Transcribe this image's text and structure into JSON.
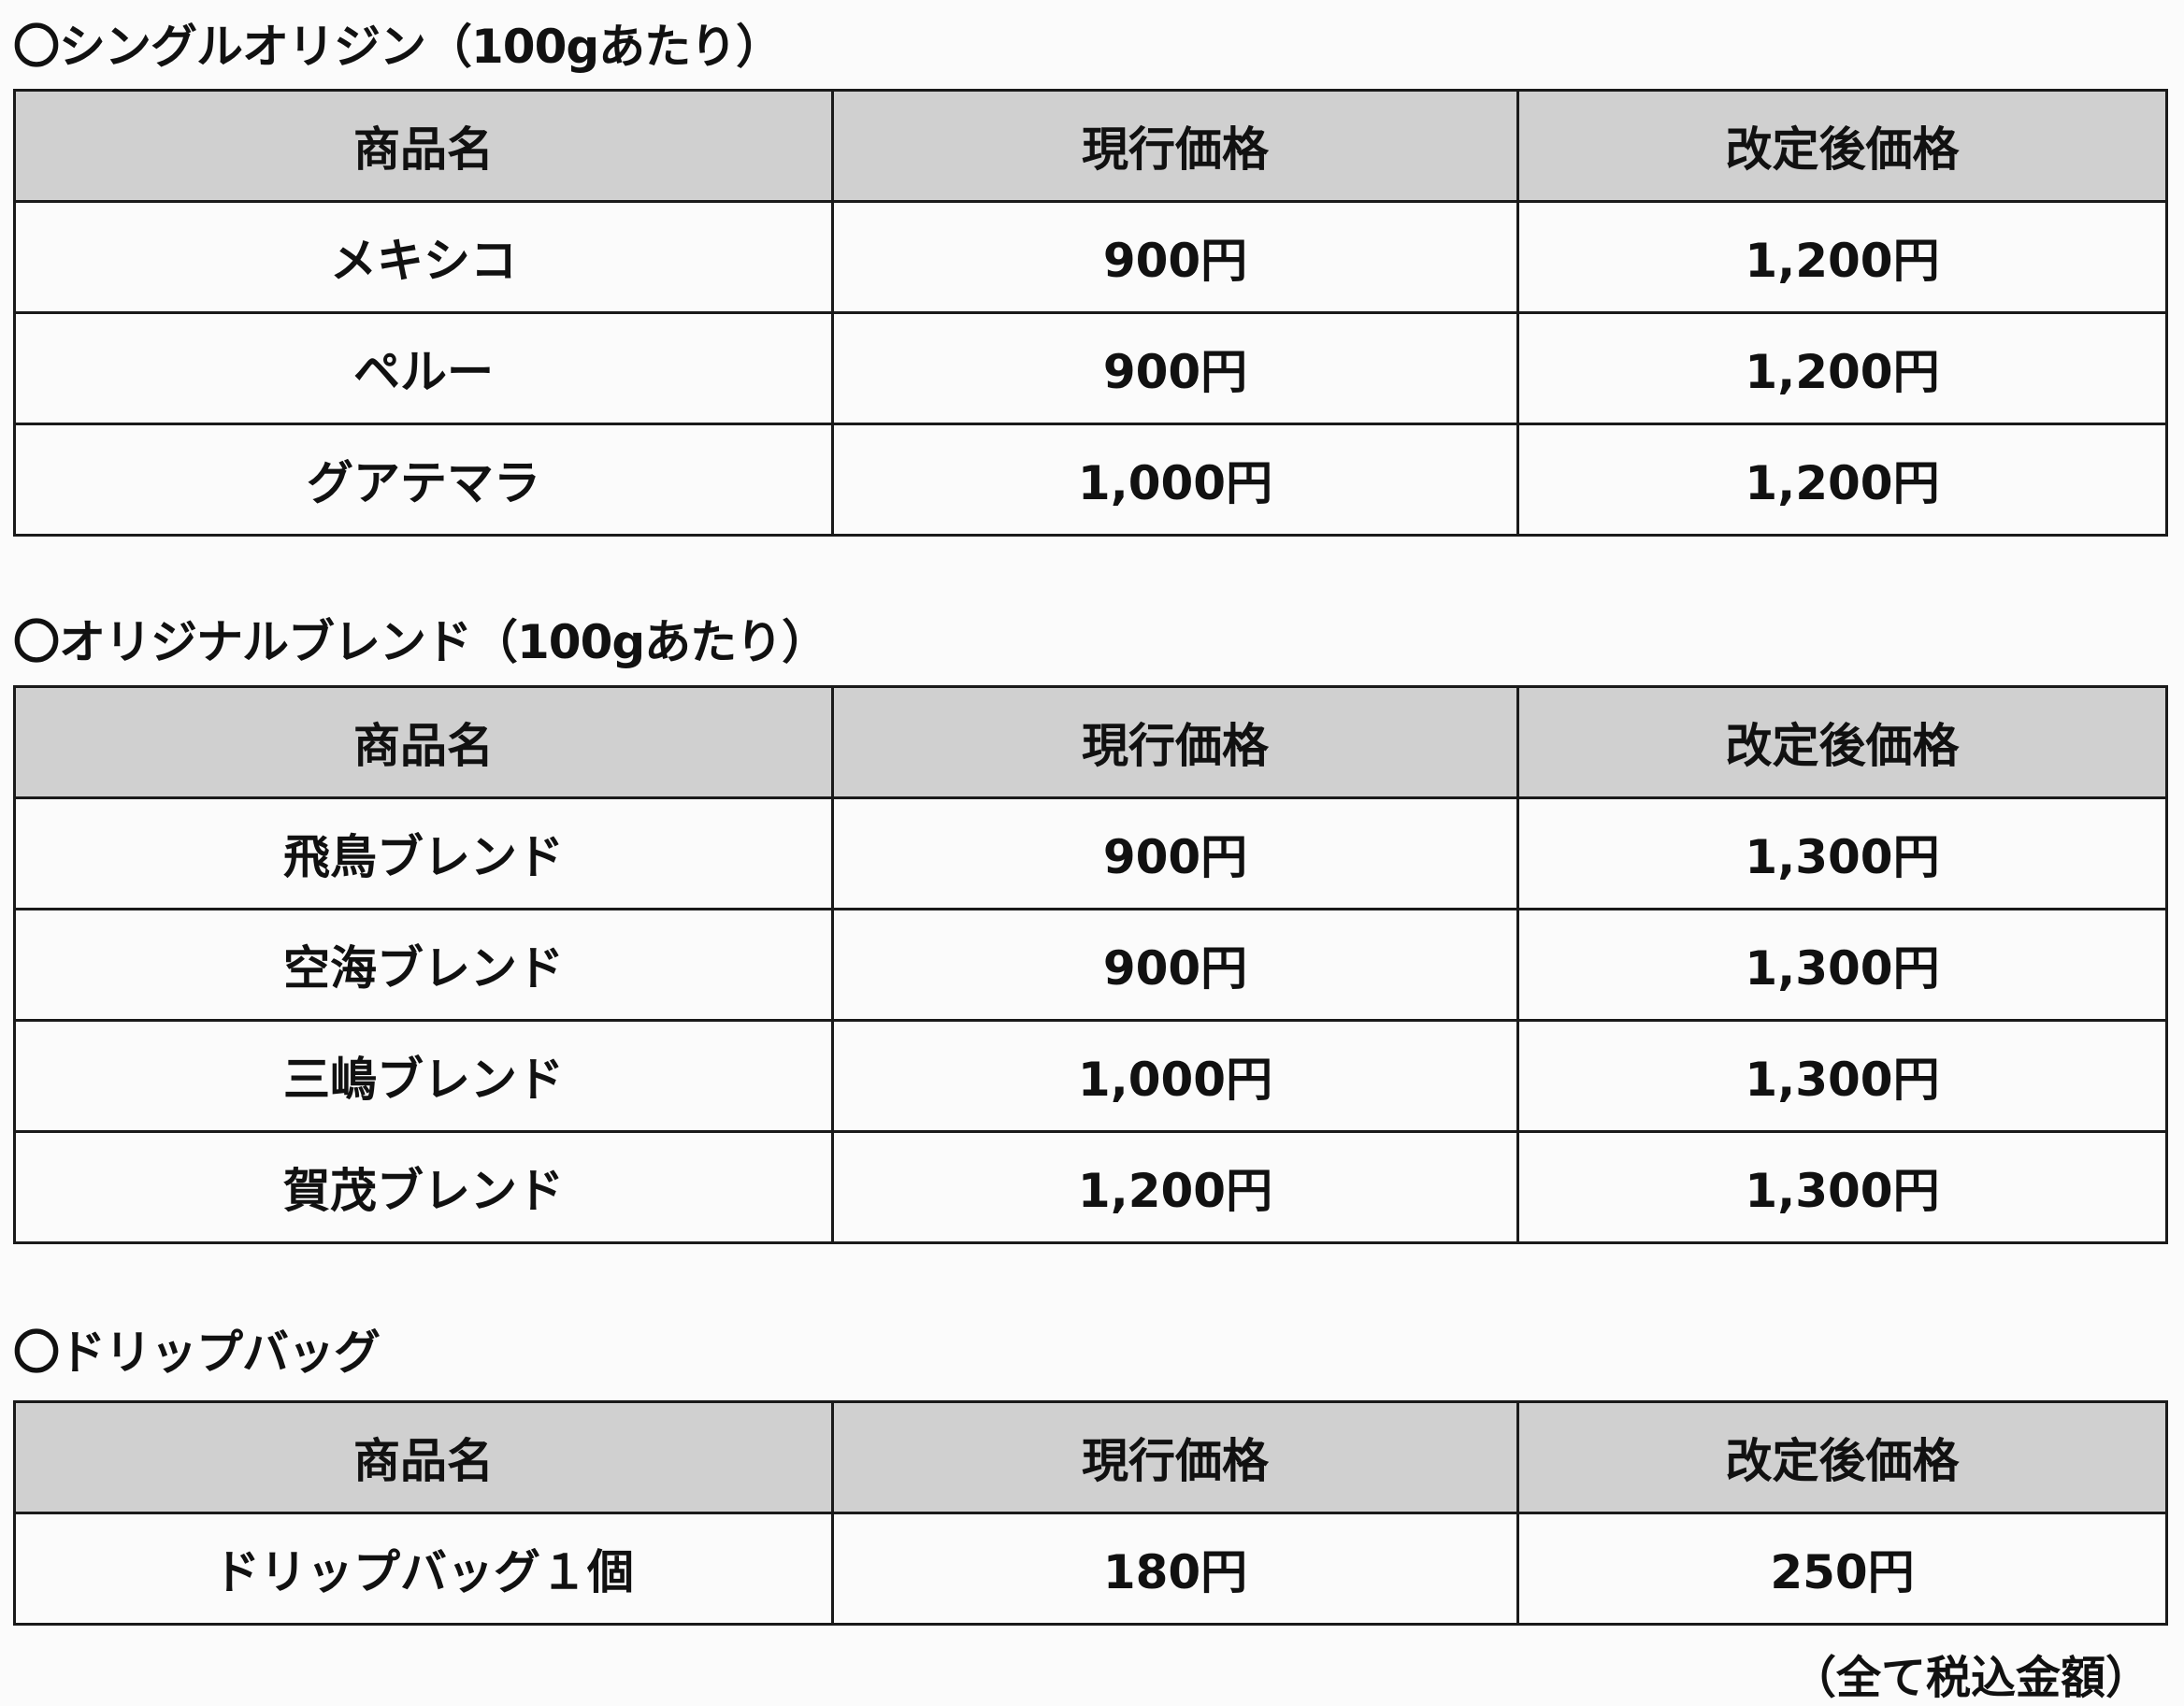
{
  "headers": [
    "商品名",
    "現行価格",
    "改定後価格"
  ],
  "sections": [
    {
      "title": "〇シングルオリジン（100gあたり）",
      "rows": [
        [
          "メキシコ",
          "900円",
          "1,200円"
        ],
        [
          "ペルー",
          "900円",
          "1,200円"
        ],
        [
          "グアテマラ",
          "1,000円",
          "1,200円"
        ]
      ]
    },
    {
      "title": "〇オリジナルブレンド（100gあたり）",
      "rows": [
        [
          "飛鳥ブレンド",
          "900円",
          "1,300円"
        ],
        [
          "空海ブレンド",
          "900円",
          "1,300円"
        ],
        [
          "三嶋ブレンド",
          "1,000円",
          "1,300円"
        ],
        [
          "賀茂ブレンド",
          "1,200円",
          "1,300円"
        ]
      ]
    },
    {
      "title": "〇ドリップバッグ",
      "rows": [
        [
          "ドリップバッグ１個",
          "180円",
          "250円"
        ]
      ]
    }
  ],
  "note": "（全て税込金額）"
}
